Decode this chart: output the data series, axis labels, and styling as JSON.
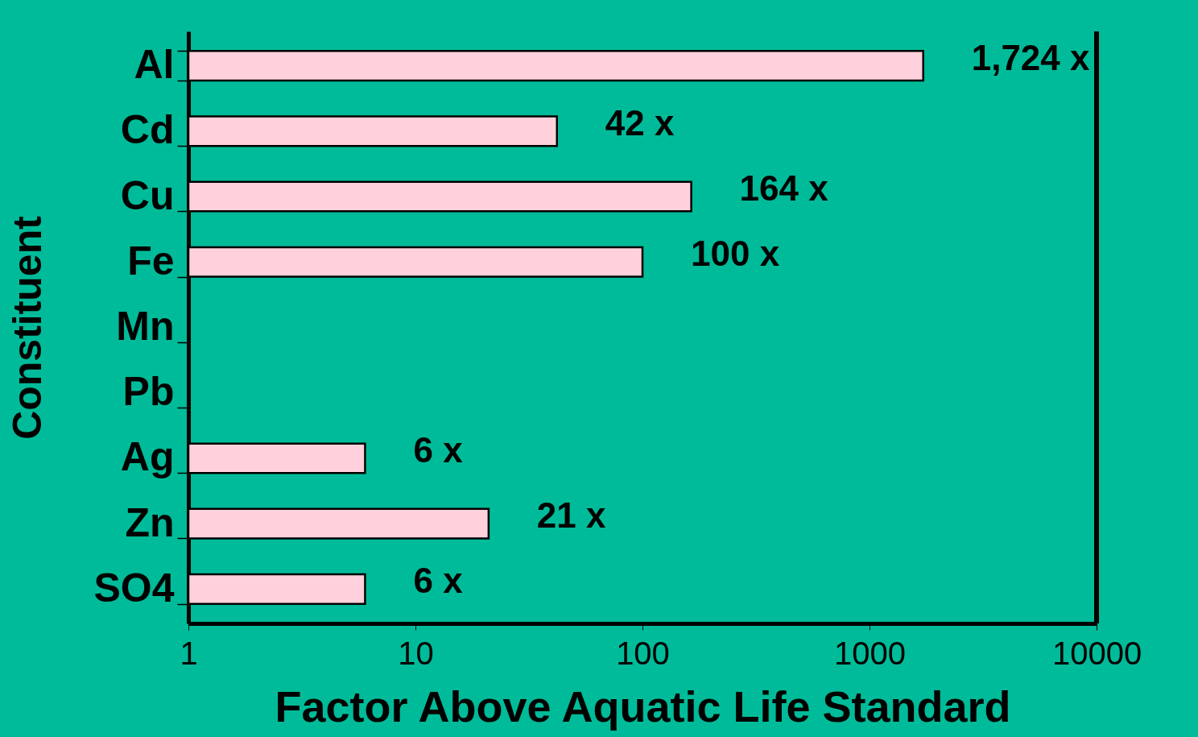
{
  "chart_data": {
    "type": "bar",
    "orientation": "horizontal",
    "xlabel": "Factor Above Aquatic Life Standard",
    "ylabel": "Constituent",
    "categories": [
      "Al",
      "Cd",
      "Cu",
      "Fe",
      "Mn",
      "Pb",
      "Ag",
      "Zn",
      "SO4"
    ],
    "values": [
      1724,
      42,
      164,
      100,
      null,
      null,
      6,
      21,
      6
    ],
    "value_labels": [
      "1,724 x",
      "42 x",
      "164 x",
      "100 x",
      null,
      null,
      "6 x",
      "21 x",
      "6 x"
    ],
    "color": "#ffd1dc",
    "log": "x",
    "xlim": [
      1,
      10000
    ],
    "xticks": [
      1,
      10,
      100,
      1000,
      10000
    ],
    "grid": false
  }
}
